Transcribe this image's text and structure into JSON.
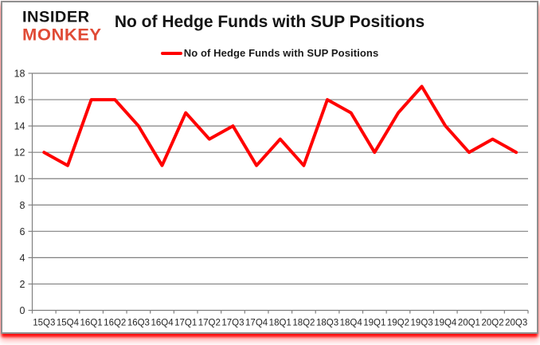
{
  "logo": {
    "line1": "INSIDER",
    "line2": "MONKEY"
  },
  "title": "No of Hedge Funds with SUP Positions",
  "legend": {
    "label": "No of Hedge Funds with SUP Positions",
    "color": "#ff0000"
  },
  "colors": {
    "line_red": "#ff0000",
    "logo_red": "#e04b36",
    "logo_black": "#121212",
    "grid_gray": "#808080",
    "label_dark": "#262626",
    "border_gray": "#8f8f8f"
  },
  "chart_data": {
    "type": "line",
    "title": "No of Hedge Funds with SUP Positions",
    "categories": [
      "15Q3",
      "15Q4",
      "16Q1",
      "16Q2",
      "16Q3",
      "16Q4",
      "17Q1",
      "17Q2",
      "17Q3",
      "17Q4",
      "18Q1",
      "18Q2",
      "18Q3",
      "18Q4",
      "19Q1",
      "19Q2",
      "19Q3",
      "19Q4",
      "20Q1",
      "20Q2",
      "20Q3"
    ],
    "values": [
      12,
      11,
      16,
      16,
      14,
      11,
      15,
      13,
      14,
      11,
      13,
      11,
      16,
      15,
      12,
      15,
      17,
      14,
      12,
      13,
      12
    ],
    "xlabel": "",
    "ylabel": "",
    "ylim": [
      0,
      18
    ],
    "ytick_step": 2,
    "grid": true,
    "legend_position": "top-center",
    "line_color": "#ff0000",
    "line_width": 4
  }
}
